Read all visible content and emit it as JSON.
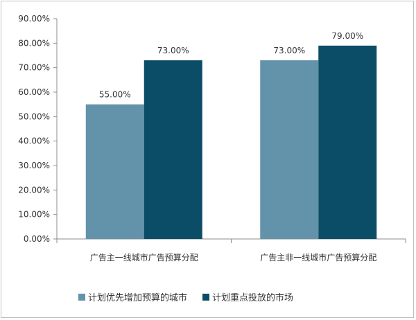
{
  "chart_data": {
    "type": "bar",
    "categories": [
      "广告主一线城市广告预算分配",
      "广告主非一线城市广告预算分配"
    ],
    "series": [
      {
        "name": "计划优先增加预算的城市",
        "values": [
          55.0,
          73.0
        ],
        "color": "#6393ab",
        "labels": [
          "55.00%",
          "73.00%"
        ]
      },
      {
        "name": "计划重点投放的市场",
        "values": [
          73.0,
          79.0
        ],
        "color": "#0b4d66",
        "labels": [
          "73.00%",
          "79.00%"
        ]
      }
    ],
    "ylim": [
      0,
      90
    ],
    "yticks": [
      "0.00%",
      "10.00%",
      "20.00%",
      "30.00%",
      "40.00%",
      "50.00%",
      "60.00%",
      "70.00%",
      "80.00%",
      "90.00%"
    ],
    "grid": false,
    "legend_position": "bottom",
    "title": "",
    "xlabel": "",
    "ylabel": ""
  }
}
